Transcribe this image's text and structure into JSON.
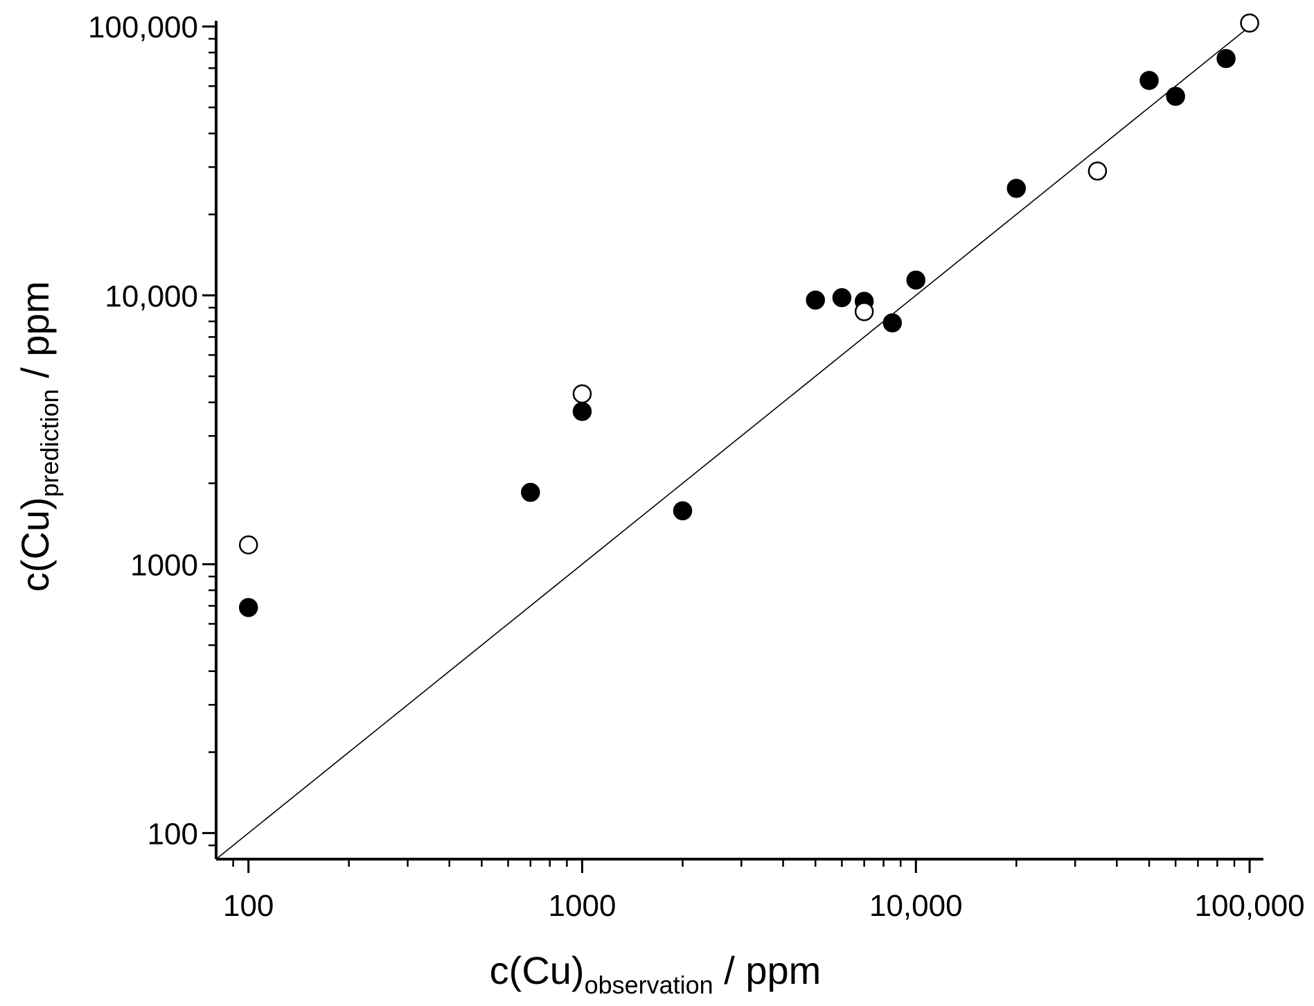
{
  "chart_data": {
    "type": "scatter",
    "title": "",
    "xlabel": {
      "main_prefix": "c(Cu)",
      "subscript": "observation",
      "suffix": " / ppm"
    },
    "ylabel": {
      "main_prefix": "c(Cu)",
      "subscript": "prediction",
      "suffix": " / ppm"
    },
    "xscale": "log",
    "yscale": "log",
    "xlim": [
      80,
      110000
    ],
    "ylim": [
      80,
      105000
    ],
    "x_ticks": [
      {
        "value": 100,
        "label": "100"
      },
      {
        "value": 1000,
        "label": "1000"
      },
      {
        "value": 10000,
        "label": "10,000"
      },
      {
        "value": 100000,
        "label": "100,000"
      }
    ],
    "y_ticks": [
      {
        "value": 100,
        "label": "100"
      },
      {
        "value": 1000,
        "label": "1000"
      },
      {
        "value": 10000,
        "label": "10,000"
      },
      {
        "value": 100000,
        "label": "100,000"
      }
    ],
    "reference_line": {
      "type": "identity",
      "from": 80,
      "to": 100000,
      "color": "#000000"
    },
    "grid": false,
    "series": [
      {
        "name": "filled",
        "marker": "filled-circle",
        "color": "#000000",
        "points": [
          {
            "x": 100,
            "y": 690
          },
          {
            "x": 700,
            "y": 1850
          },
          {
            "x": 1000,
            "y": 3700
          },
          {
            "x": 2000,
            "y": 1580
          },
          {
            "x": 5000,
            "y": 9600
          },
          {
            "x": 6000,
            "y": 9800
          },
          {
            "x": 7000,
            "y": 9500
          },
          {
            "x": 8500,
            "y": 7900
          },
          {
            "x": 10000,
            "y": 11400
          },
          {
            "x": 20000,
            "y": 25000
          },
          {
            "x": 50000,
            "y": 63000
          },
          {
            "x": 60000,
            "y": 55000
          },
          {
            "x": 85000,
            "y": 76000
          }
        ]
      },
      {
        "name": "open",
        "marker": "open-circle",
        "color": "#000000",
        "points": [
          {
            "x": 100,
            "y": 1180
          },
          {
            "x": 1000,
            "y": 4300
          },
          {
            "x": 7000,
            "y": 8700
          },
          {
            "x": 35000,
            "y": 29000
          },
          {
            "x": 100000,
            "y": 103000
          }
        ]
      }
    ]
  }
}
